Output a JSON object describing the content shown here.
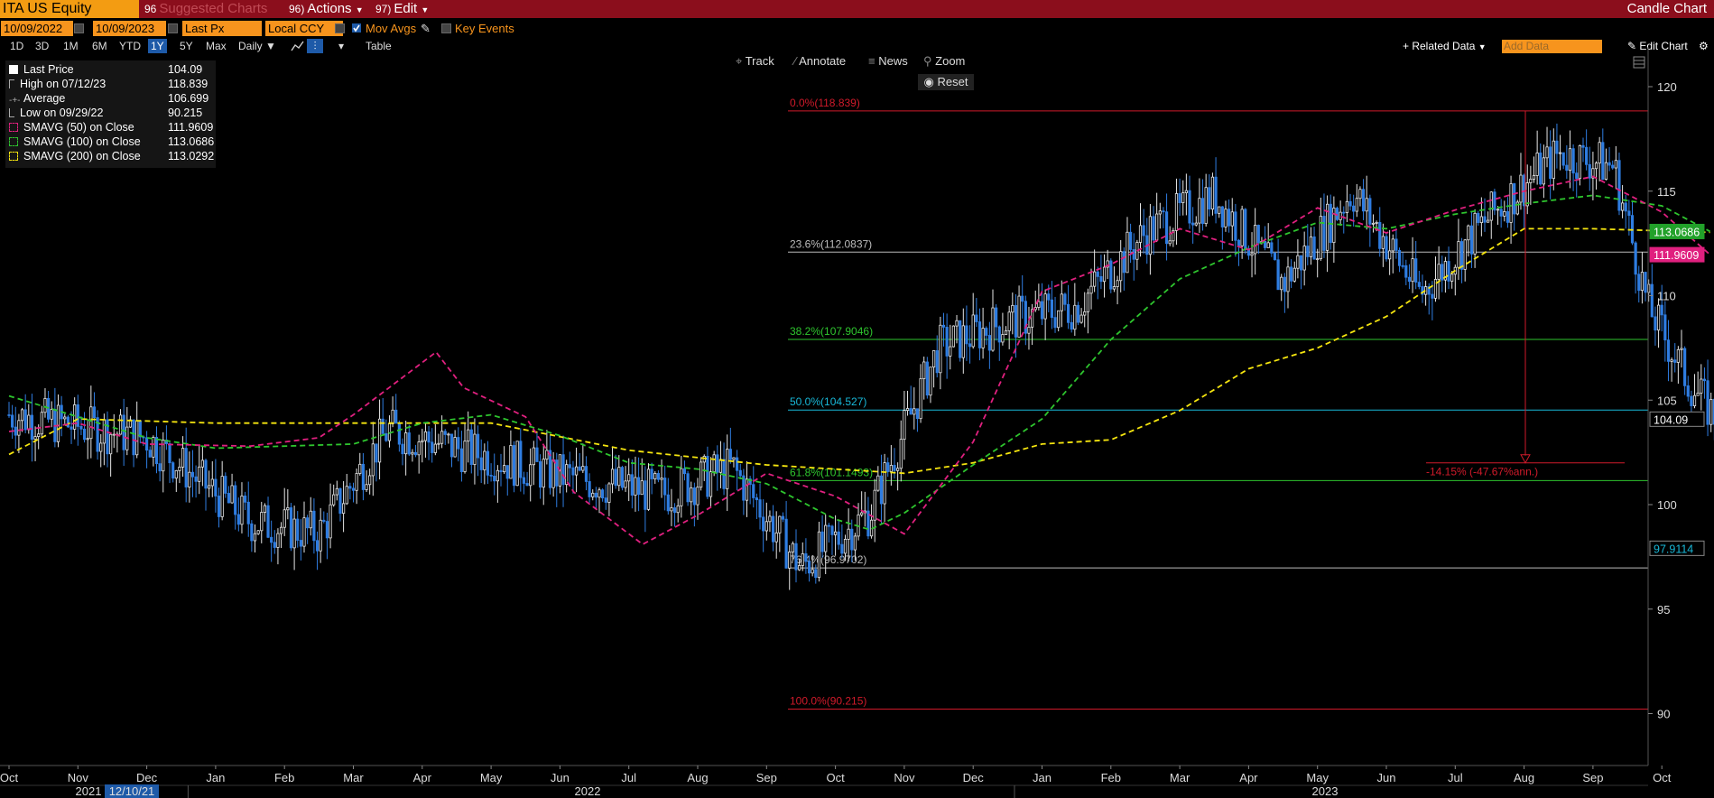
{
  "header": {
    "security": "ITA US Equity",
    "suggested_num": "96",
    "suggested": "Suggested Charts",
    "actions_num": "96)",
    "actions": "Actions",
    "edit_num": "97)",
    "edit": "Edit",
    "chart_type": "Candle Chart"
  },
  "controls": {
    "start_date": "10/09/2022",
    "end_date": "10/09/2023",
    "price_field": "Last Px",
    "currency": "Local CCY",
    "mov_avgs": "Mov Avgs",
    "key_events": "Key Events",
    "periods": [
      "1D",
      "3D",
      "1M",
      "6M",
      "YTD",
      "1Y",
      "5Y",
      "Max"
    ],
    "selected_period": "1Y",
    "frequency": "Daily",
    "table": "Table",
    "related_data": "+ Related Data",
    "add_data": "Add Data",
    "edit_chart": "Edit Chart"
  },
  "tools": {
    "track": "Track",
    "annotate": "Annotate",
    "news": "News",
    "zoom": "Zoom",
    "reset": "Reset"
  },
  "legend": [
    {
      "label": "Last Price",
      "value": "104.09",
      "color": "#ffffff"
    },
    {
      "label": "High on 07/12/23",
      "value": "118.839",
      "color": "#aaaaaa"
    },
    {
      "label": "Average",
      "value": "106.699",
      "color": "#aaaaaa"
    },
    {
      "label": "Low on 09/29/22",
      "value": "90.215",
      "color": "#aaaaaa"
    },
    {
      "label": "SMAVG (50)  on Close",
      "value": "111.9609",
      "color": "#e0207f"
    },
    {
      "label": "SMAVG (100)  on Close",
      "value": "113.0686",
      "color": "#2ec52e"
    },
    {
      "label": "SMAVG (200)  on Close",
      "value": "113.0292",
      "color": "#f5e50f"
    }
  ],
  "chart_data": {
    "type": "candlestick",
    "ylim": [
      87,
      122
    ],
    "yticks": [
      90,
      95,
      100,
      105,
      110,
      115,
      120
    ],
    "x_months": [
      "Oct",
      "Nov",
      "Dec",
      "Jan",
      "Feb",
      "Mar",
      "Apr",
      "May",
      "Jun",
      "Jul",
      "Aug",
      "Sep",
      "Oct",
      "Nov",
      "Dec",
      "Jan",
      "Feb",
      "Mar",
      "Apr",
      "May",
      "Jun",
      "Jul",
      "Aug",
      "Sep",
      "Oct"
    ],
    "x_years": [
      "2021",
      "2022",
      "2023"
    ],
    "x_year_marker": "12/10/21",
    "price_path": [
      {
        "t": 0.0,
        "v": 104.3
      },
      {
        "t": 2.0,
        "v": 103.2
      },
      {
        "t": 3.5,
        "v": 99.2
      },
      {
        "t": 4.5,
        "v": 98.6
      },
      {
        "t": 5.5,
        "v": 103.6
      },
      {
        "t": 6.5,
        "v": 102.7
      },
      {
        "t": 8.0,
        "v": 101.4
      },
      {
        "t": 9.5,
        "v": 100.5
      },
      {
        "t": 10.5,
        "v": 101.8
      },
      {
        "t": 11.5,
        "v": 97.0
      },
      {
        "t": 12.5,
        "v": 99.6
      },
      {
        "t": 13.5,
        "v": 107.5
      },
      {
        "t": 14.5,
        "v": 108.8
      },
      {
        "t": 15.5,
        "v": 109.5
      },
      {
        "t": 16.5,
        "v": 113.0
      },
      {
        "t": 17.5,
        "v": 114.8
      },
      {
        "t": 18.5,
        "v": 110.6
      },
      {
        "t": 19.5,
        "v": 115.0
      },
      {
        "t": 20.5,
        "v": 110.1
      },
      {
        "t": 21.5,
        "v": 113.8
      },
      {
        "t": 22.5,
        "v": 116.8
      },
      {
        "t": 23.3,
        "v": 116.2
      },
      {
        "t": 23.8,
        "v": 109.5
      },
      {
        "t": 24.4,
        "v": 105.8
      },
      {
        "t": 24.8,
        "v": 104.09
      }
    ],
    "smavg50": [
      {
        "t": 0.0,
        "v": 103.5
      },
      {
        "t": 1.0,
        "v": 103.9
      },
      {
        "t": 2.0,
        "v": 102.9
      },
      {
        "t": 3.5,
        "v": 102.8
      },
      {
        "t": 4.5,
        "v": 103.2
      },
      {
        "t": 5.0,
        "v": 104.3
      },
      {
        "t": 6.2,
        "v": 107.3
      },
      {
        "t": 6.6,
        "v": 105.6
      },
      {
        "t": 7.5,
        "v": 104.2
      },
      {
        "t": 8.2,
        "v": 100.6
      },
      {
        "t": 9.2,
        "v": 98.1
      },
      {
        "t": 10.0,
        "v": 99.5
      },
      {
        "t": 11.0,
        "v": 101.5
      },
      {
        "t": 12.0,
        "v": 100.4
      },
      {
        "t": 13.0,
        "v": 98.6
      },
      {
        "t": 14.0,
        "v": 103.0
      },
      {
        "t": 15.0,
        "v": 110.2
      },
      {
        "t": 16.0,
        "v": 111.5
      },
      {
        "t": 17.0,
        "v": 113.2
      },
      {
        "t": 18.0,
        "v": 112.2
      },
      {
        "t": 19.0,
        "v": 114.2
      },
      {
        "t": 20.0,
        "v": 113.0
      },
      {
        "t": 21.0,
        "v": 114.1
      },
      {
        "t": 22.0,
        "v": 115.0
      },
      {
        "t": 23.0,
        "v": 115.7
      },
      {
        "t": 24.0,
        "v": 114.0
      },
      {
        "t": 24.7,
        "v": 111.96
      }
    ],
    "smavg100": [
      {
        "t": 0.0,
        "v": 105.2
      },
      {
        "t": 2.0,
        "v": 103.2
      },
      {
        "t": 3.0,
        "v": 102.7
      },
      {
        "t": 5.0,
        "v": 102.9
      },
      {
        "t": 6.0,
        "v": 103.9
      },
      {
        "t": 7.0,
        "v": 104.3
      },
      {
        "t": 8.0,
        "v": 103.3
      },
      {
        "t": 9.0,
        "v": 102.0
      },
      {
        "t": 10.0,
        "v": 101.7
      },
      {
        "t": 11.0,
        "v": 101.0
      },
      {
        "t": 12.0,
        "v": 99.3
      },
      {
        "t": 12.5,
        "v": 98.8
      },
      {
        "t": 13.0,
        "v": 99.6
      },
      {
        "t": 14.0,
        "v": 101.9
      },
      {
        "t": 15.0,
        "v": 104.1
      },
      {
        "t": 16.0,
        "v": 107.9
      },
      {
        "t": 17.0,
        "v": 110.8
      },
      {
        "t": 18.0,
        "v": 112.3
      },
      {
        "t": 19.0,
        "v": 113.5
      },
      {
        "t": 20.0,
        "v": 113.2
      },
      {
        "t": 21.0,
        "v": 113.9
      },
      {
        "t": 22.0,
        "v": 114.4
      },
      {
        "t": 23.0,
        "v": 114.8
      },
      {
        "t": 24.0,
        "v": 114.3
      },
      {
        "t": 24.7,
        "v": 113.07
      }
    ],
    "smavg200": [
      {
        "t": 0.0,
        "v": 102.4
      },
      {
        "t": 1.0,
        "v": 104.1
      },
      {
        "t": 3.0,
        "v": 103.9
      },
      {
        "t": 5.0,
        "v": 103.9
      },
      {
        "t": 7.0,
        "v": 103.9
      },
      {
        "t": 9.0,
        "v": 102.6
      },
      {
        "t": 11.0,
        "v": 101.9
      },
      {
        "t": 13.0,
        "v": 101.5
      },
      {
        "t": 14.0,
        "v": 102.0
      },
      {
        "t": 15.0,
        "v": 102.9
      },
      {
        "t": 16.0,
        "v": 103.1
      },
      {
        "t": 17.0,
        "v": 104.5
      },
      {
        "t": 18.0,
        "v": 106.5
      },
      {
        "t": 19.0,
        "v": 107.5
      },
      {
        "t": 20.0,
        "v": 109.0
      },
      {
        "t": 21.0,
        "v": 111.2
      },
      {
        "t": 22.0,
        "v": 113.2
      },
      {
        "t": 23.0,
        "v": 113.2
      },
      {
        "t": 24.0,
        "v": 113.1
      },
      {
        "t": 24.7,
        "v": 113.03
      }
    ],
    "fibonacci": [
      {
        "label": "0.0%(118.839)",
        "value": 118.839,
        "color": "#d01a2a"
      },
      {
        "label": "23.6%(112.0837)",
        "value": 112.0837,
        "color": "#bbbbbb"
      },
      {
        "label": "38.2%(107.9046)",
        "value": 107.9046,
        "color": "#2ec52e"
      },
      {
        "label": "50.0%(104.527)",
        "value": 104.527,
        "color": "#18b8d8"
      },
      {
        "label": "61.8%(101.1493)",
        "value": 101.1493,
        "color": "#2ec52e"
      },
      {
        "label": "76.4%(96.9702)",
        "value": 96.9702,
        "color": "#bbbbbb"
      },
      {
        "label": "100.0%(90.215)",
        "value": 90.215,
        "color": "#d01a2a"
      }
    ],
    "change_annotation": "-14.15% (-47.67%ann.)",
    "change_level": 102.0,
    "right_labels": [
      {
        "text": "113.0686",
        "value": 113.0686,
        "bg": "#22a12a",
        "fg": "#ffffff"
      },
      {
        "text": "111.9609",
        "value": 111.9609,
        "bg": "#e0207f",
        "fg": "#ffffff"
      },
      {
        "text": "104.09",
        "value": 104.09,
        "bg": "#000000",
        "fg": "#ffffff"
      },
      {
        "text": "97.9114",
        "value": 97.9114,
        "bg": "#000000",
        "fg": "#18b8d8"
      }
    ]
  }
}
